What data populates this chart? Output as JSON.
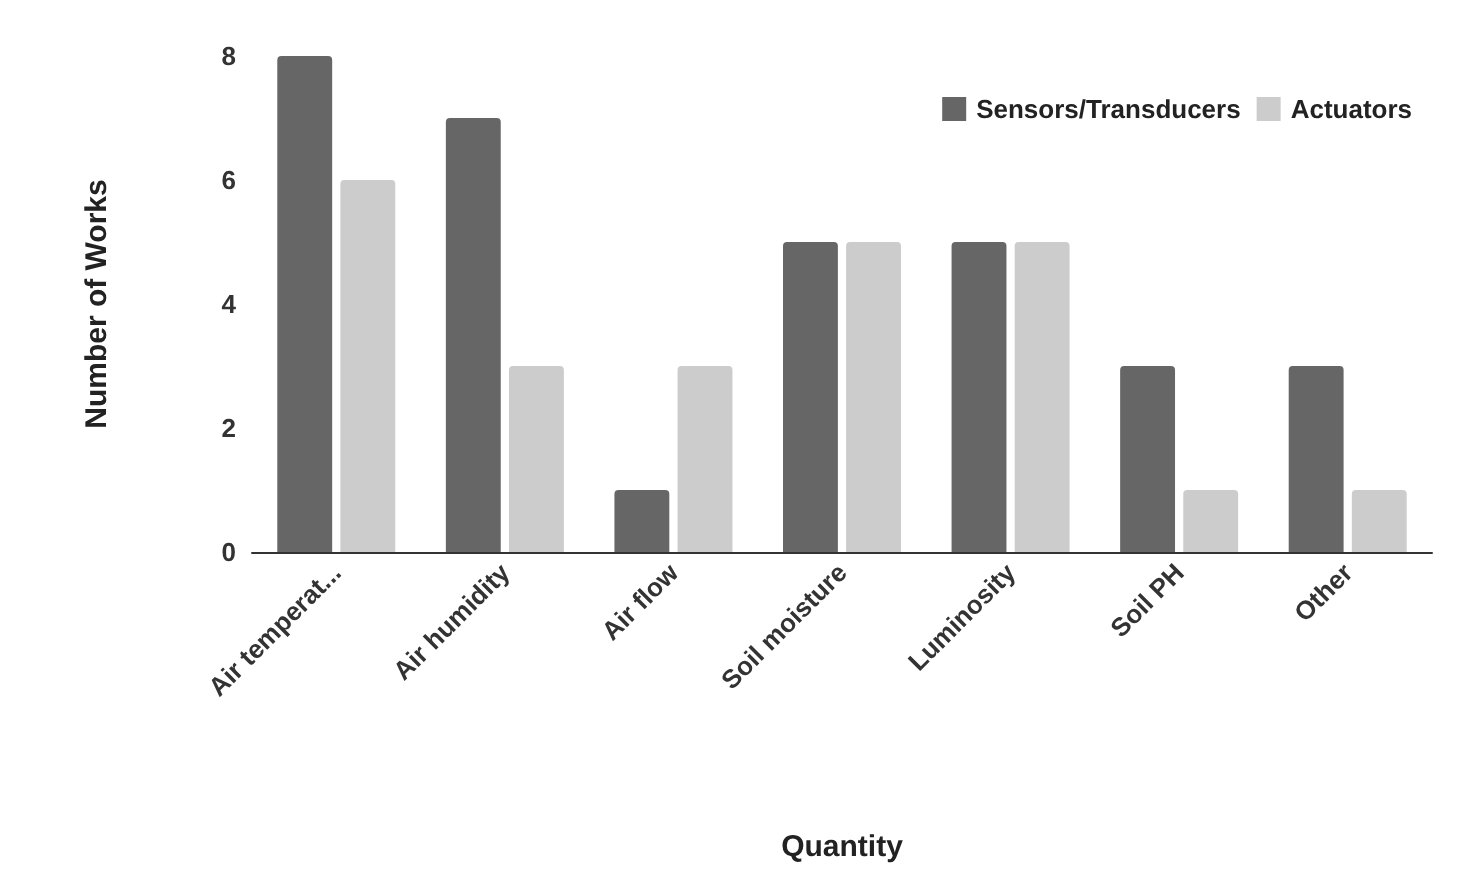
{
  "chart_data": {
    "type": "bar",
    "xlabel": "Quantity",
    "ylabel": "Number of Works",
    "categories": [
      "Air temperat...",
      "Air humidity",
      "Air flow",
      "Soil moisture",
      "Luminosity",
      "Soil PH",
      "Other"
    ],
    "series": [
      {
        "name": "Sensors/Transducers",
        "color": "#666666",
        "values": [
          8,
          7,
          1,
          5,
          5,
          3,
          3
        ]
      },
      {
        "name": "Actuators",
        "color": "#cccccc",
        "values": [
          6,
          3,
          3,
          5,
          5,
          1,
          1
        ]
      }
    ],
    "ylim": [
      0,
      8
    ],
    "yticks": [
      0,
      2,
      4,
      6,
      8
    ],
    "grid": false,
    "legend": "top right"
  }
}
